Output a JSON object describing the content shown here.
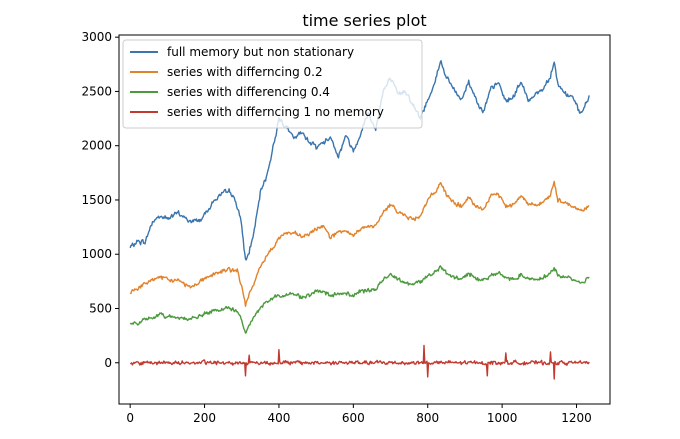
{
  "chart_data": {
    "type": "line",
    "title": "time series plot",
    "xlabel": "",
    "ylabel": "",
    "xlim": [
      -30,
      1290
    ],
    "ylim": [
      -380,
      3020
    ],
    "xticks": [
      0,
      200,
      400,
      600,
      800,
      1000,
      1200
    ],
    "yticks": [
      0,
      500,
      1000,
      1500,
      2000,
      2500,
      3000
    ],
    "grid": false,
    "legend_position": "top-left",
    "noise_seed": 7,
    "series": [
      {
        "name": "full memory but non stationary",
        "color": "#3a75ae",
        "points": [
          [
            0,
            1060
          ],
          [
            20,
            1120
          ],
          [
            40,
            1110
          ],
          [
            60,
            1300
          ],
          [
            80,
            1350
          ],
          [
            100,
            1330
          ],
          [
            130,
            1380
          ],
          [
            160,
            1300
          ],
          [
            190,
            1320
          ],
          [
            210,
            1420
          ],
          [
            230,
            1510
          ],
          [
            250,
            1560
          ],
          [
            270,
            1580
          ],
          [
            290,
            1430
          ],
          [
            300,
            1250
          ],
          [
            310,
            940
          ],
          [
            320,
            1020
          ],
          [
            335,
            1240
          ],
          [
            350,
            1560
          ],
          [
            370,
            1760
          ],
          [
            385,
            2000
          ],
          [
            400,
            2250
          ],
          [
            420,
            2180
          ],
          [
            440,
            2060
          ],
          [
            460,
            2120
          ],
          [
            480,
            2050
          ],
          [
            500,
            1990
          ],
          [
            520,
            2030
          ],
          [
            540,
            2080
          ],
          [
            560,
            1900
          ],
          [
            580,
            2100
          ],
          [
            600,
            1950
          ],
          [
            620,
            2120
          ],
          [
            640,
            2300
          ],
          [
            660,
            2150
          ],
          [
            680,
            2500
          ],
          [
            700,
            2620
          ],
          [
            720,
            2470
          ],
          [
            740,
            2510
          ],
          [
            760,
            2380
          ],
          [
            780,
            2250
          ],
          [
            800,
            2420
          ],
          [
            820,
            2600
          ],
          [
            835,
            2780
          ],
          [
            850,
            2630
          ],
          [
            870,
            2520
          ],
          [
            890,
            2420
          ],
          [
            910,
            2590
          ],
          [
            930,
            2430
          ],
          [
            950,
            2310
          ],
          [
            970,
            2520
          ],
          [
            990,
            2580
          ],
          [
            1010,
            2410
          ],
          [
            1030,
            2450
          ],
          [
            1050,
            2590
          ],
          [
            1070,
            2420
          ],
          [
            1090,
            2480
          ],
          [
            1110,
            2520
          ],
          [
            1130,
            2650
          ],
          [
            1140,
            2780
          ],
          [
            1150,
            2560
          ],
          [
            1170,
            2480
          ],
          [
            1190,
            2440
          ],
          [
            1210,
            2290
          ],
          [
            1225,
            2380
          ],
          [
            1235,
            2450
          ]
        ],
        "noise": 28
      },
      {
        "name": "series with differncing 0.2",
        "color": "#e0832c",
        "points": [
          [
            0,
            650
          ],
          [
            20,
            690
          ],
          [
            40,
            720
          ],
          [
            60,
            770
          ],
          [
            80,
            790
          ],
          [
            100,
            760
          ],
          [
            130,
            760
          ],
          [
            160,
            700
          ],
          [
            180,
            730
          ],
          [
            200,
            780
          ],
          [
            230,
            820
          ],
          [
            260,
            860
          ],
          [
            290,
            840
          ],
          [
            300,
            700
          ],
          [
            310,
            530
          ],
          [
            320,
            620
          ],
          [
            340,
            800
          ],
          [
            360,
            950
          ],
          [
            380,
            1050
          ],
          [
            400,
            1150
          ],
          [
            420,
            1200
          ],
          [
            440,
            1190
          ],
          [
            460,
            1160
          ],
          [
            480,
            1180
          ],
          [
            500,
            1230
          ],
          [
            520,
            1270
          ],
          [
            540,
            1150
          ],
          [
            560,
            1210
          ],
          [
            580,
            1200
          ],
          [
            600,
            1170
          ],
          [
            620,
            1240
          ],
          [
            640,
            1250
          ],
          [
            660,
            1260
          ],
          [
            680,
            1380
          ],
          [
            700,
            1460
          ],
          [
            720,
            1400
          ],
          [
            740,
            1350
          ],
          [
            760,
            1320
          ],
          [
            780,
            1360
          ],
          [
            800,
            1500
          ],
          [
            820,
            1570
          ],
          [
            835,
            1670
          ],
          [
            850,
            1540
          ],
          [
            870,
            1480
          ],
          [
            890,
            1440
          ],
          [
            910,
            1520
          ],
          [
            930,
            1430
          ],
          [
            950,
            1420
          ],
          [
            970,
            1530
          ],
          [
            990,
            1560
          ],
          [
            1010,
            1440
          ],
          [
            1030,
            1460
          ],
          [
            1050,
            1550
          ],
          [
            1070,
            1460
          ],
          [
            1090,
            1460
          ],
          [
            1110,
            1480
          ],
          [
            1130,
            1540
          ],
          [
            1140,
            1660
          ],
          [
            1150,
            1500
          ],
          [
            1170,
            1480
          ],
          [
            1190,
            1440
          ],
          [
            1210,
            1400
          ],
          [
            1225,
            1420
          ],
          [
            1235,
            1460
          ]
        ],
        "noise": 24
      },
      {
        "name": "series with differencing 0.4",
        "color": "#4c9a3e",
        "points": [
          [
            0,
            350
          ],
          [
            20,
            370
          ],
          [
            40,
            390
          ],
          [
            60,
            420
          ],
          [
            80,
            440
          ],
          [
            100,
            430
          ],
          [
            130,
            420
          ],
          [
            160,
            400
          ],
          [
            180,
            420
          ],
          [
            200,
            450
          ],
          [
            230,
            480
          ],
          [
            260,
            500
          ],
          [
            290,
            480
          ],
          [
            300,
            380
          ],
          [
            310,
            270
          ],
          [
            320,
            340
          ],
          [
            340,
            470
          ],
          [
            360,
            540
          ],
          [
            380,
            590
          ],
          [
            400,
            620
          ],
          [
            420,
            630
          ],
          [
            440,
            630
          ],
          [
            460,
            610
          ],
          [
            480,
            620
          ],
          [
            500,
            650
          ],
          [
            520,
            660
          ],
          [
            540,
            610
          ],
          [
            560,
            640
          ],
          [
            580,
            640
          ],
          [
            600,
            620
          ],
          [
            620,
            660
          ],
          [
            640,
            660
          ],
          [
            660,
            680
          ],
          [
            680,
            760
          ],
          [
            700,
            820
          ],
          [
            720,
            780
          ],
          [
            740,
            740
          ],
          [
            760,
            720
          ],
          [
            780,
            750
          ],
          [
            800,
            800
          ],
          [
            820,
            840
          ],
          [
            835,
            880
          ],
          [
            850,
            820
          ],
          [
            870,
            790
          ],
          [
            890,
            770
          ],
          [
            910,
            820
          ],
          [
            930,
            780
          ],
          [
            950,
            760
          ],
          [
            970,
            810
          ],
          [
            990,
            830
          ],
          [
            1010,
            780
          ],
          [
            1030,
            770
          ],
          [
            1050,
            810
          ],
          [
            1070,
            780
          ],
          [
            1090,
            770
          ],
          [
            1110,
            790
          ],
          [
            1130,
            820
          ],
          [
            1140,
            880
          ],
          [
            1150,
            800
          ],
          [
            1170,
            790
          ],
          [
            1190,
            770
          ],
          [
            1210,
            740
          ],
          [
            1225,
            760
          ],
          [
            1235,
            790
          ]
        ],
        "noise": 22
      },
      {
        "name": "series with differncing 1 no memory",
        "color": "#c23a2f",
        "points": [
          [
            0,
            0
          ],
          [
            1235,
            0
          ]
        ],
        "noise": 22,
        "spikes": [
          [
            305,
            -90
          ],
          [
            310,
            -120
          ],
          [
            320,
            70
          ],
          [
            395,
            150
          ],
          [
            400,
            120
          ],
          [
            790,
            160
          ],
          [
            800,
            -130
          ],
          [
            960,
            -120
          ],
          [
            1010,
            90
          ],
          [
            1130,
            100
          ],
          [
            1135,
            -230
          ],
          [
            1140,
            -150
          ]
        ]
      }
    ]
  }
}
